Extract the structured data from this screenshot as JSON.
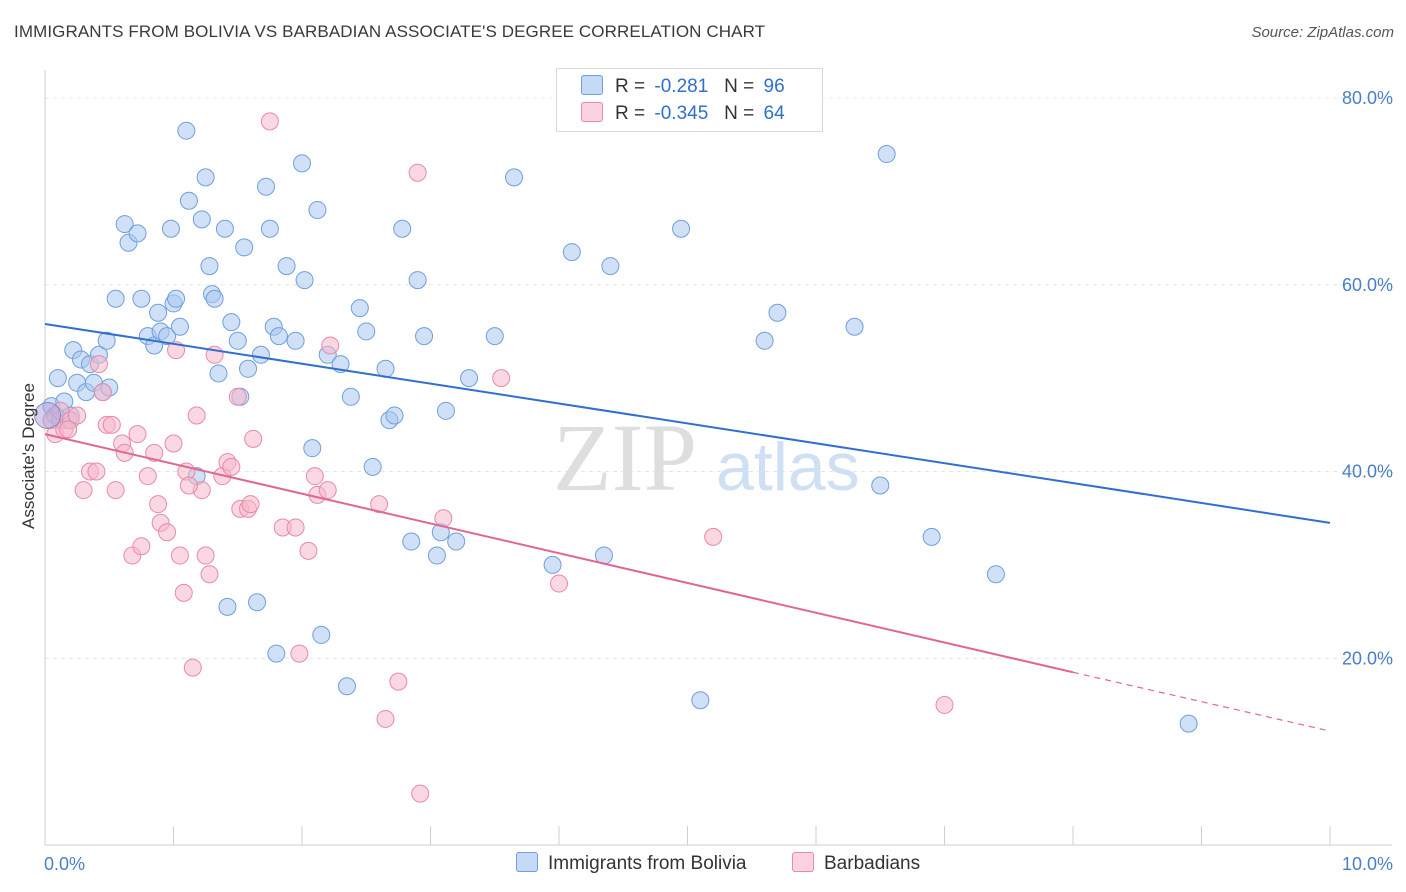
{
  "title": "IMMIGRANTS FROM BOLIVIA VS BARBADIAN ASSOCIATE'S DEGREE CORRELATION CHART",
  "source": "Source: ZipAtlas.com",
  "watermark": {
    "zip": "ZIP",
    "atlas": "atlas"
  },
  "legend": {
    "r_label": "R =",
    "n_label": "N =",
    "series": [
      {
        "name": "Immigrants from Bolivia",
        "r": "-0.281",
        "n": "96",
        "fill": "#aac8f0",
        "stroke": "#6f9fdc",
        "line": "#2f6fd0"
      },
      {
        "name": "Barbadians",
        "r": "-0.345",
        "n": "64",
        "fill": "#f6b8ca",
        "stroke": "#e989a8",
        "line": "#e0678f"
      }
    ]
  },
  "chart_data": {
    "type": "scatter",
    "title": "IMMIGRANTS FROM BOLIVIA VS BARBADIAN ASSOCIATE'S DEGREE CORRELATION CHART",
    "xlabel": "",
    "ylabel": "Associate's Degree",
    "xlim": [
      0,
      10
    ],
    "ylim": [
      0,
      83
    ],
    "x_tick_labels": [
      {
        "value": 0,
        "label": "0.0%"
      },
      {
        "value": 10,
        "label": "10.0%"
      }
    ],
    "y_tick_labels": [
      {
        "value": 20,
        "label": "20.0%"
      },
      {
        "value": 40,
        "label": "40.0%"
      },
      {
        "value": 60,
        "label": "60.0%"
      },
      {
        "value": 80,
        "label": "80.0%"
      }
    ],
    "grid": true,
    "series": [
      {
        "name": "Immigrants from Bolivia",
        "trend": {
          "x0": 0,
          "y0": 55.8,
          "x1": 10,
          "y1": 34.5
        },
        "points": [
          [
            0.05,
            47.0
          ],
          [
            0.08,
            46.0
          ],
          [
            0.1,
            50.0
          ],
          [
            0.12,
            45.5
          ],
          [
            0.15,
            47.5
          ],
          [
            0.18,
            45.5
          ],
          [
            0.22,
            53.0
          ],
          [
            0.25,
            49.5
          ],
          [
            0.28,
            52.0
          ],
          [
            0.32,
            48.5
          ],
          [
            0.35,
            51.5
          ],
          [
            0.38,
            49.5
          ],
          [
            0.42,
            52.5
          ],
          [
            0.45,
            48.5
          ],
          [
            0.48,
            54.0
          ],
          [
            0.5,
            49.0
          ],
          [
            0.55,
            58.5
          ],
          [
            0.62,
            66.5
          ],
          [
            0.65,
            64.5
          ],
          [
            0.72,
            65.5
          ],
          [
            0.75,
            58.5
          ],
          [
            0.8,
            54.5
          ],
          [
            0.85,
            53.5
          ],
          [
            0.88,
            57.0
          ],
          [
            0.9,
            55.0
          ],
          [
            0.95,
            54.5
          ],
          [
            0.98,
            66.0
          ],
          [
            1.0,
            58.0
          ],
          [
            1.02,
            58.5
          ],
          [
            1.05,
            55.5
          ],
          [
            1.1,
            76.5
          ],
          [
            1.12,
            69.0
          ],
          [
            1.18,
            39.5
          ],
          [
            1.22,
            67.0
          ],
          [
            1.25,
            71.5
          ],
          [
            1.28,
            62.0
          ],
          [
            1.3,
            59.0
          ],
          [
            1.32,
            58.5
          ],
          [
            1.35,
            50.5
          ],
          [
            1.4,
            66.0
          ],
          [
            1.42,
            25.5
          ],
          [
            1.45,
            56.0
          ],
          [
            1.5,
            54.0
          ],
          [
            1.52,
            48.0
          ],
          [
            1.55,
            64.0
          ],
          [
            1.58,
            51.0
          ],
          [
            1.65,
            26.0
          ],
          [
            1.68,
            52.5
          ],
          [
            1.72,
            70.5
          ],
          [
            1.75,
            66.0
          ],
          [
            1.78,
            55.5
          ],
          [
            1.8,
            20.5
          ],
          [
            1.82,
            54.5
          ],
          [
            1.88,
            62.0
          ],
          [
            1.95,
            54.0
          ],
          [
            2.0,
            73.0
          ],
          [
            2.02,
            60.5
          ],
          [
            2.08,
            42.5
          ],
          [
            2.12,
            68.0
          ],
          [
            2.15,
            22.5
          ],
          [
            2.2,
            52.5
          ],
          [
            2.3,
            51.5
          ],
          [
            2.35,
            17.0
          ],
          [
            2.38,
            48.0
          ],
          [
            2.45,
            57.5
          ],
          [
            2.5,
            55.0
          ],
          [
            2.55,
            40.5
          ],
          [
            2.65,
            51.0
          ],
          [
            2.68,
            45.5
          ],
          [
            2.72,
            46.0
          ],
          [
            2.78,
            66.0
          ],
          [
            2.85,
            32.5
          ],
          [
            2.9,
            60.5
          ],
          [
            2.95,
            54.5
          ],
          [
            3.05,
            31.0
          ],
          [
            3.08,
            33.5
          ],
          [
            3.12,
            46.5
          ],
          [
            3.2,
            32.5
          ],
          [
            3.3,
            50.0
          ],
          [
            3.5,
            54.5
          ],
          [
            3.65,
            71.5
          ],
          [
            3.95,
            30.0
          ],
          [
            4.1,
            63.5
          ],
          [
            4.35,
            31.0
          ],
          [
            4.4,
            62.0
          ],
          [
            4.95,
            66.0
          ],
          [
            5.1,
            15.5
          ],
          [
            5.6,
            54.0
          ],
          [
            5.7,
            57.0
          ],
          [
            6.3,
            55.5
          ],
          [
            6.5,
            38.5
          ],
          [
            6.55,
            74.0
          ],
          [
            6.9,
            33.0
          ],
          [
            7.4,
            29.0
          ],
          [
            8.9,
            13.0
          ],
          [
            0.2,
            46.0
          ]
        ]
      },
      {
        "name": "Barbadians",
        "trend": {
          "x0": 0,
          "y0": 44.0,
          "x1": 8.0,
          "y1": 18.5
        },
        "trend_dashed": {
          "x0": 8.0,
          "y0": 18.5,
          "x1": 10,
          "y1": 12.2
        },
        "points": [
          [
            0.05,
            45.5
          ],
          [
            0.08,
            44.0
          ],
          [
            0.12,
            46.5
          ],
          [
            0.15,
            44.5
          ],
          [
            0.2,
            45.5
          ],
          [
            0.25,
            46.0
          ],
          [
            0.3,
            38.0
          ],
          [
            0.35,
            40.0
          ],
          [
            0.4,
            40.0
          ],
          [
            0.42,
            51.5
          ],
          [
            0.45,
            48.5
          ],
          [
            0.48,
            45.0
          ],
          [
            0.52,
            45.0
          ],
          [
            0.55,
            38.0
          ],
          [
            0.6,
            43.0
          ],
          [
            0.62,
            42.0
          ],
          [
            0.68,
            31.0
          ],
          [
            0.72,
            44.0
          ],
          [
            0.75,
            32.0
          ],
          [
            0.8,
            39.5
          ],
          [
            0.85,
            42.0
          ],
          [
            0.88,
            36.5
          ],
          [
            0.9,
            34.5
          ],
          [
            0.95,
            33.5
          ],
          [
            1.0,
            43.0
          ],
          [
            1.02,
            53.0
          ],
          [
            1.05,
            31.0
          ],
          [
            1.08,
            27.0
          ],
          [
            1.1,
            40.0
          ],
          [
            1.15,
            19.0
          ],
          [
            1.18,
            46.0
          ],
          [
            1.22,
            38.0
          ],
          [
            1.25,
            31.0
          ],
          [
            1.28,
            29.0
          ],
          [
            1.32,
            52.5
          ],
          [
            1.38,
            39.5
          ],
          [
            1.42,
            41.0
          ],
          [
            1.45,
            40.5
          ],
          [
            1.5,
            48.0
          ],
          [
            1.52,
            36.0
          ],
          [
            1.58,
            36.0
          ],
          [
            1.62,
            43.5
          ],
          [
            1.75,
            77.5
          ],
          [
            1.85,
            34.0
          ],
          [
            1.95,
            34.0
          ],
          [
            1.98,
            20.5
          ],
          [
            2.05,
            31.5
          ],
          [
            2.1,
            39.5
          ],
          [
            2.12,
            37.5
          ],
          [
            2.2,
            38.0
          ],
          [
            2.22,
            53.5
          ],
          [
            2.6,
            36.5
          ],
          [
            2.65,
            13.5
          ],
          [
            2.75,
            17.5
          ],
          [
            2.9,
            72.0
          ],
          [
            2.92,
            5.5
          ],
          [
            3.1,
            35.0
          ],
          [
            3.55,
            50.0
          ],
          [
            4.0,
            28.0
          ],
          [
            5.2,
            33.0
          ],
          [
            7.0,
            15.0
          ],
          [
            0.18,
            44.5
          ],
          [
            1.12,
            38.5
          ],
          [
            1.6,
            36.5
          ]
        ]
      }
    ]
  }
}
